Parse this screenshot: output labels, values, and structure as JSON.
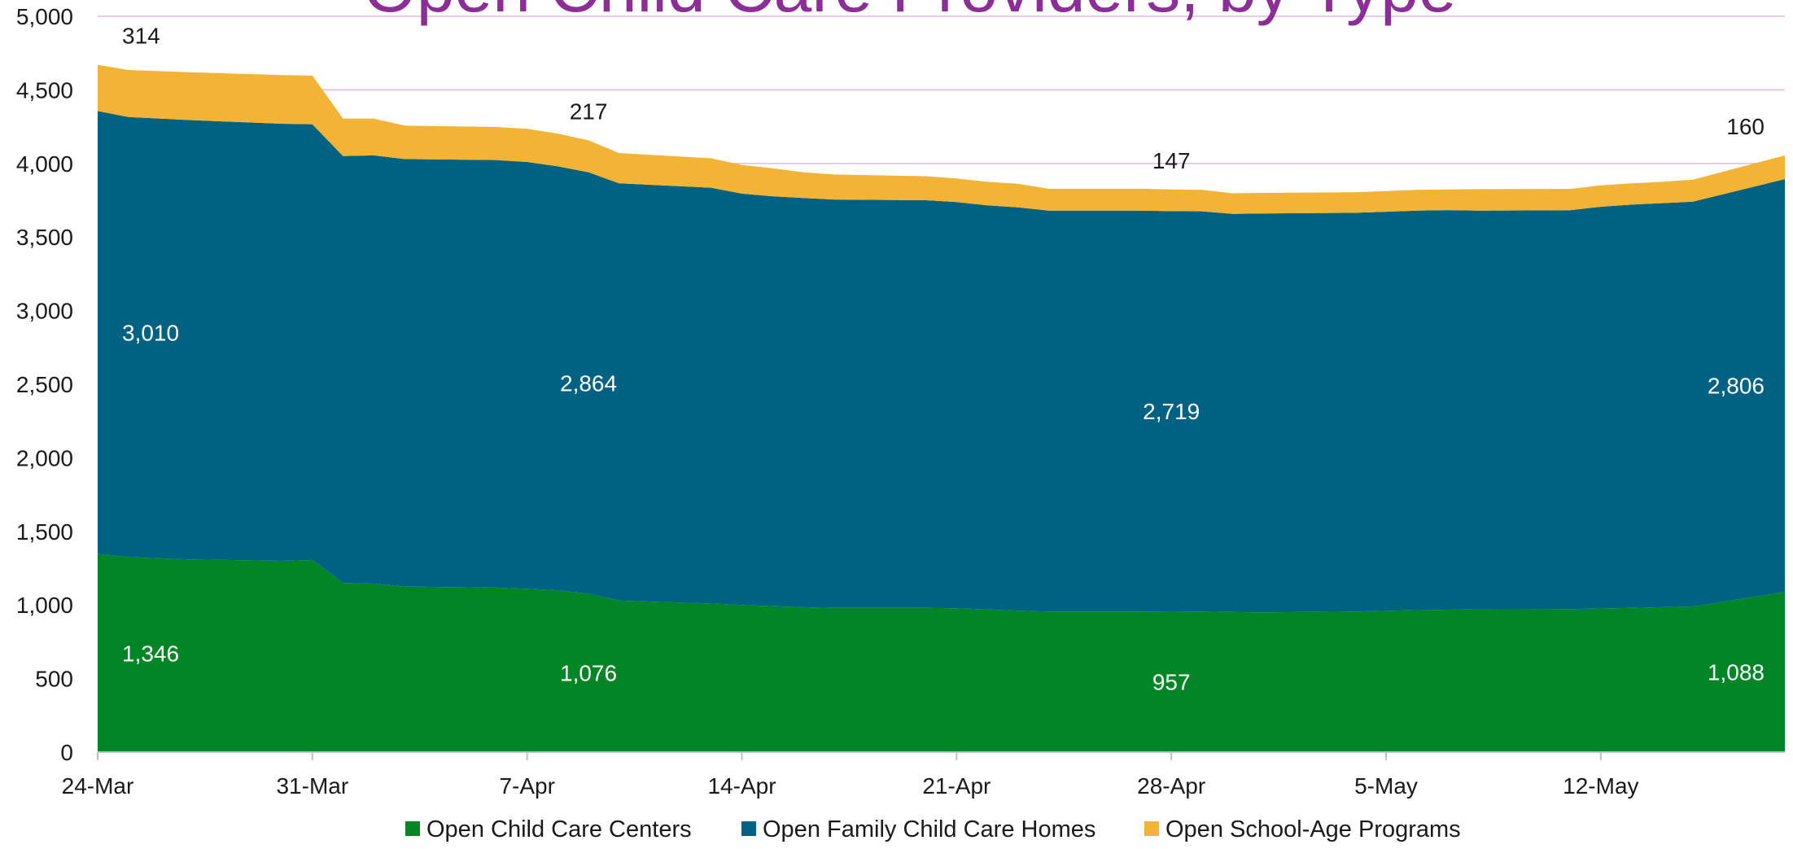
{
  "chart_data": {
    "type": "area",
    "stacked": true,
    "title": "Open Child Care Providers, by Type",
    "ylim": [
      0,
      5000
    ],
    "y_ticks": [
      0,
      500,
      1000,
      1500,
      2000,
      2500,
      3000,
      3500,
      4000,
      4500,
      5000
    ],
    "y_tick_labels": [
      "0",
      "500",
      "1,000",
      "1,500",
      "2,000",
      "2,500",
      "3,000",
      "3,500",
      "4,000",
      "4,500",
      "5,000"
    ],
    "x_tick_labels": [
      "24-Mar",
      "31-Mar",
      "7-Apr",
      "14-Apr",
      "21-Apr",
      "28-Apr",
      "5-May",
      "12-May"
    ],
    "x": [
      "24-Mar",
      "25-Mar",
      "27-Mar",
      "30-Mar",
      "31-Mar",
      "1-Apr",
      "2-Apr",
      "3-Apr",
      "6-Apr",
      "7-Apr",
      "8-Apr",
      "9-Apr",
      "10-Apr",
      "13-Apr",
      "14-Apr",
      "15-Apr",
      "16-Apr",
      "17-Apr",
      "20-Apr",
      "21-Apr",
      "22-Apr",
      "23-Apr",
      "24-Apr",
      "27-Apr",
      "28-Apr",
      "29-Apr",
      "30-Apr",
      "1-May",
      "4-May",
      "5-May",
      "6-May",
      "7-May",
      "8-May",
      "11-May",
      "12-May",
      "13-May",
      "14-May",
      "15-May",
      "18-May"
    ],
    "grid": true,
    "legend_position": "bottom",
    "series": [
      {
        "name": "Open Child Care Centers",
        "color": "#008625",
        "values": [
          1346,
          1325,
          1310,
          1300,
          1306,
          1150,
          1145,
          1125,
          1118,
          1110,
          1100,
          1076,
          1030,
          1010,
          1000,
          992,
          985,
          980,
          980,
          978,
          970,
          962,
          955,
          955,
          957,
          955,
          952,
          950,
          955,
          960,
          965,
          968,
          970,
          972,
          976,
          980,
          985,
          990,
          1088
        ]
      },
      {
        "name": "Open Family Child Care Homes",
        "color": "#006282",
        "values": [
          3010,
          2990,
          2985,
          2970,
          2960,
          2900,
          2910,
          2905,
          2905,
          2900,
          2880,
          2864,
          2835,
          2825,
          2795,
          2785,
          2780,
          2775,
          2770,
          2760,
          2745,
          2740,
          2725,
          2725,
          2719,
          2720,
          2705,
          2710,
          2710,
          2712,
          2715,
          2715,
          2710,
          2710,
          2730,
          2740,
          2745,
          2750,
          2806
        ]
      },
      {
        "name": "Open School-Age Programs",
        "color": "#F3B335",
        "values": [
          314,
          320,
          325,
          330,
          331,
          255,
          250,
          227,
          225,
          225,
          222,
          217,
          205,
          200,
          195,
          190,
          175,
          170,
          163,
          160,
          160,
          160,
          148,
          148,
          147,
          145,
          140,
          140,
          140,
          140,
          140,
          140,
          145,
          145,
          145,
          145,
          145,
          150,
          160
        ]
      }
    ],
    "data_labels": [
      {
        "series": 0,
        "x": "24-Mar",
        "value": "1,346"
      },
      {
        "series": 1,
        "x": "24-Mar",
        "value": "3,010"
      },
      {
        "series": 2,
        "x": "24-Mar",
        "value": "314"
      },
      {
        "series": 0,
        "x": "9-Apr",
        "value": "1,076"
      },
      {
        "series": 1,
        "x": "9-Apr",
        "value": "2,864"
      },
      {
        "series": 2,
        "x": "9-Apr",
        "value": "217"
      },
      {
        "series": 0,
        "x": "28-Apr",
        "value": "957"
      },
      {
        "series": 1,
        "x": "28-Apr",
        "value": "2,719"
      },
      {
        "series": 2,
        "x": "28-Apr",
        "value": "147"
      },
      {
        "series": 0,
        "x": "18-May",
        "value": "1,088"
      },
      {
        "series": 1,
        "x": "18-May",
        "value": "2,806"
      },
      {
        "series": 2,
        "x": "18-May",
        "value": "160"
      }
    ],
    "title_color": "#8B2F97",
    "gridline_color": "#E6B8E8",
    "label_color_dark": "#1a1a1a",
    "label_color_light": "#ffffff"
  }
}
